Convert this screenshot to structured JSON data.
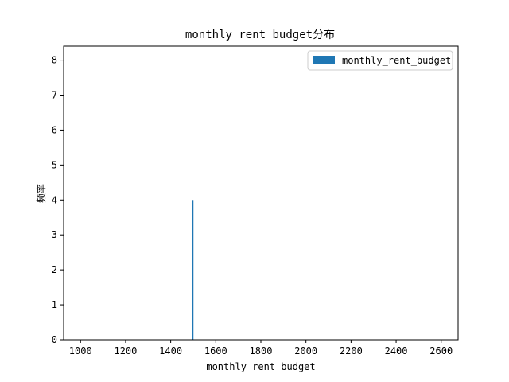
{
  "chart_data": {
    "type": "bar",
    "title": "monthly_rent_budget分布",
    "xlabel": "monthly_rent_budget",
    "ylabel": "频率",
    "xlim": [
      925,
      2675
    ],
    "ylim": [
      0,
      8.4
    ],
    "x_ticks": [
      1000,
      1200,
      1400,
      1600,
      1800,
      2000,
      2200,
      2400,
      2600
    ],
    "y_ticks": [
      0,
      1,
      2,
      3,
      4,
      5,
      6,
      7,
      8
    ],
    "grid": false,
    "legend": {
      "placement": "top-right",
      "entries": [
        "monthly_rent_budget"
      ]
    },
    "series": [
      {
        "name": "monthly_rent_budget",
        "color": "#1f77b4",
        "bins": [
          {
            "x0": 1495,
            "x1": 1501,
            "count": 4
          }
        ]
      }
    ]
  }
}
